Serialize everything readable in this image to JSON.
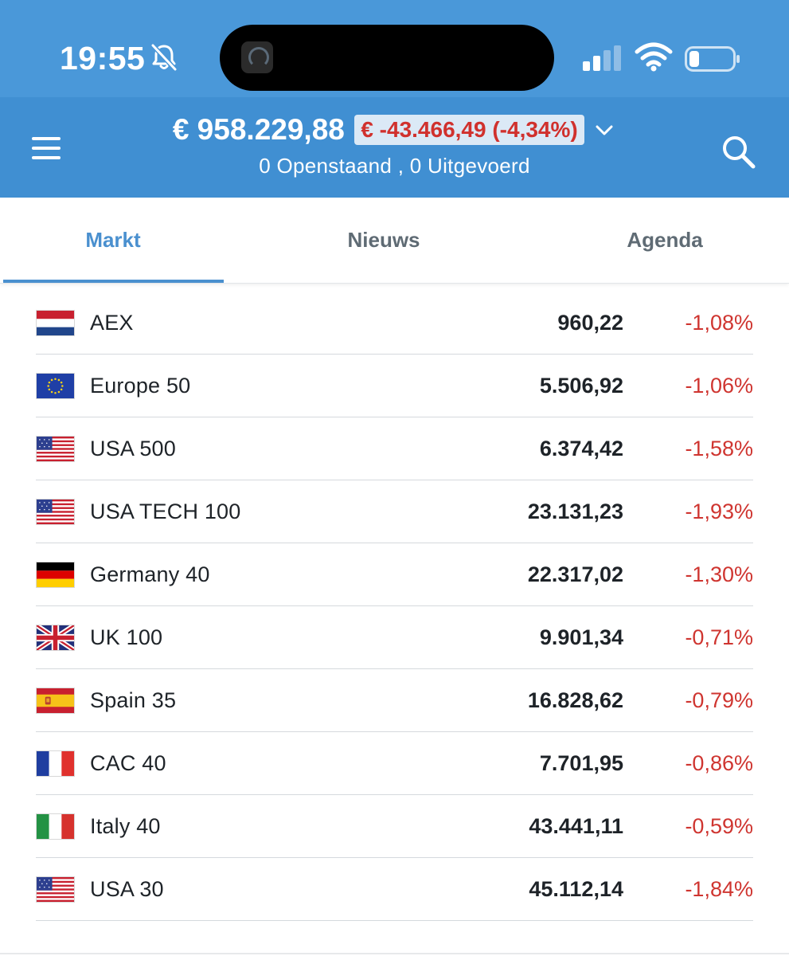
{
  "status_bar": {
    "time": "19:55",
    "icons": [
      "bell-slash-icon",
      "cellular-signal-icon",
      "wifi-icon",
      "battery-icon"
    ]
  },
  "header": {
    "portfolio_value": "€ 958.229,88",
    "portfolio_change": "€ -43.466,49 (-4,34%)",
    "orders_summary": "0 Openstaand , 0 Uitgevoerd",
    "icons": [
      "menu-icon",
      "chevron-down-icon",
      "search-icon"
    ]
  },
  "tabs": [
    {
      "label": "Markt",
      "active": true
    },
    {
      "label": "Nieuws",
      "active": false
    },
    {
      "label": "Agenda",
      "active": false
    }
  ],
  "markets": [
    {
      "name": "AEX",
      "value": "960,22",
      "change": "-1,08%",
      "flag": "netherlands-flag-icon"
    },
    {
      "name": "Europe 50",
      "value": "5.506,92",
      "change": "-1,06%",
      "flag": "eu-flag-icon"
    },
    {
      "name": "USA 500",
      "value": "6.374,42",
      "change": "-1,58%",
      "flag": "usa-flag-icon"
    },
    {
      "name": "USA TECH 100",
      "value": "23.131,23",
      "change": "-1,93%",
      "flag": "usa-flag-icon"
    },
    {
      "name": "Germany 40",
      "value": "22.317,02",
      "change": "-1,30%",
      "flag": "germany-flag-icon"
    },
    {
      "name": "UK 100",
      "value": "9.901,34",
      "change": "-0,71%",
      "flag": "uk-flag-icon"
    },
    {
      "name": "Spain 35",
      "value": "16.828,62",
      "change": "-0,79%",
      "flag": "spain-flag-icon"
    },
    {
      "name": "CAC 40",
      "value": "7.701,95",
      "change": "-0,86%",
      "flag": "france-flag-icon"
    },
    {
      "name": "Italy 40",
      "value": "43.441,11",
      "change": "-0,59%",
      "flag": "italy-flag-icon"
    },
    {
      "name": "USA 30",
      "value": "45.112,14",
      "change": "-1,84%",
      "flag": "usa-flag-icon"
    }
  ],
  "colors": {
    "statusbar_bg": "#4a98d9",
    "header_bg": "#408fd2",
    "active_tab": "#4a90cf",
    "negative": "#cf3530",
    "badge_bg": "#dbe9f6"
  }
}
